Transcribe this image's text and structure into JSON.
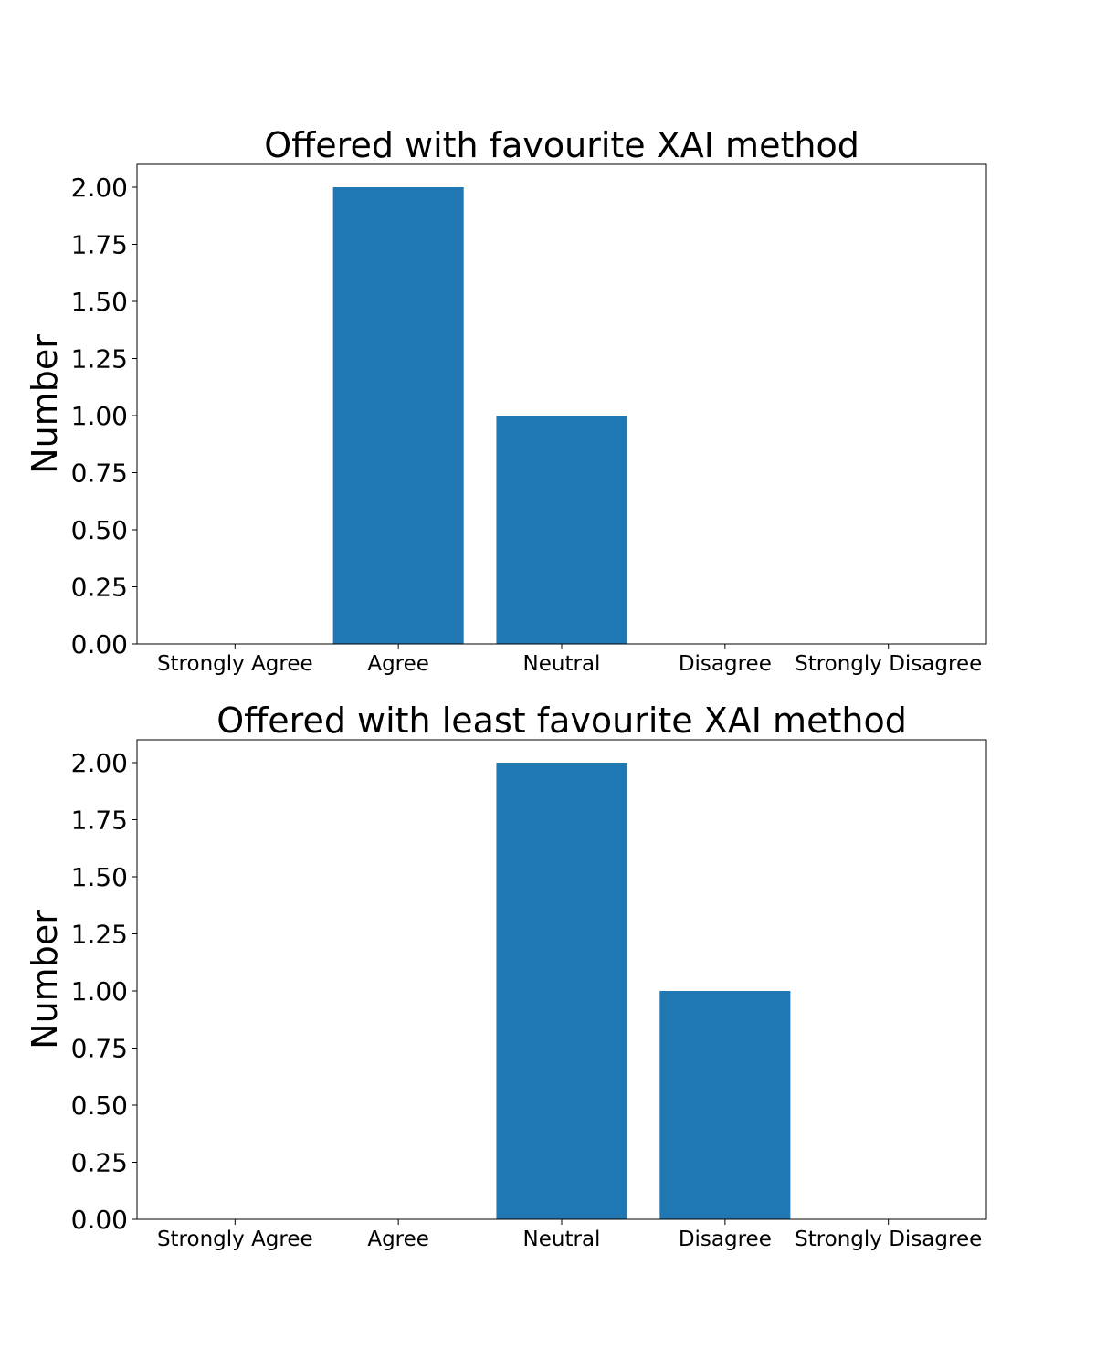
{
  "chart_data": [
    {
      "type": "bar",
      "title": "Offered with favourite XAI method",
      "xlabel": "",
      "ylabel": "Number",
      "categories": [
        "Strongly Agree",
        "Agree",
        "Neutral",
        "Disagree",
        "Strongly Disagree"
      ],
      "values": [
        0,
        2,
        1,
        0,
        0
      ],
      "ylim": [
        0,
        2.1
      ],
      "yticks": [
        "0.00",
        "0.25",
        "0.50",
        "0.75",
        "1.00",
        "1.25",
        "1.50",
        "1.75",
        "2.00"
      ],
      "color": "#1f77b4",
      "grid": false
    },
    {
      "type": "bar",
      "title": "Offered with least favourite XAI method",
      "xlabel": "",
      "ylabel": "Number",
      "categories": [
        "Strongly Agree",
        "Agree",
        "Neutral",
        "Disagree",
        "Strongly Disagree"
      ],
      "values": [
        0,
        0,
        2,
        1,
        0
      ],
      "ylim": [
        0,
        2.1
      ],
      "yticks": [
        "0.00",
        "0.25",
        "0.50",
        "0.75",
        "1.00",
        "1.25",
        "1.50",
        "1.75",
        "2.00"
      ],
      "color": "#1f77b4",
      "grid": false
    }
  ]
}
